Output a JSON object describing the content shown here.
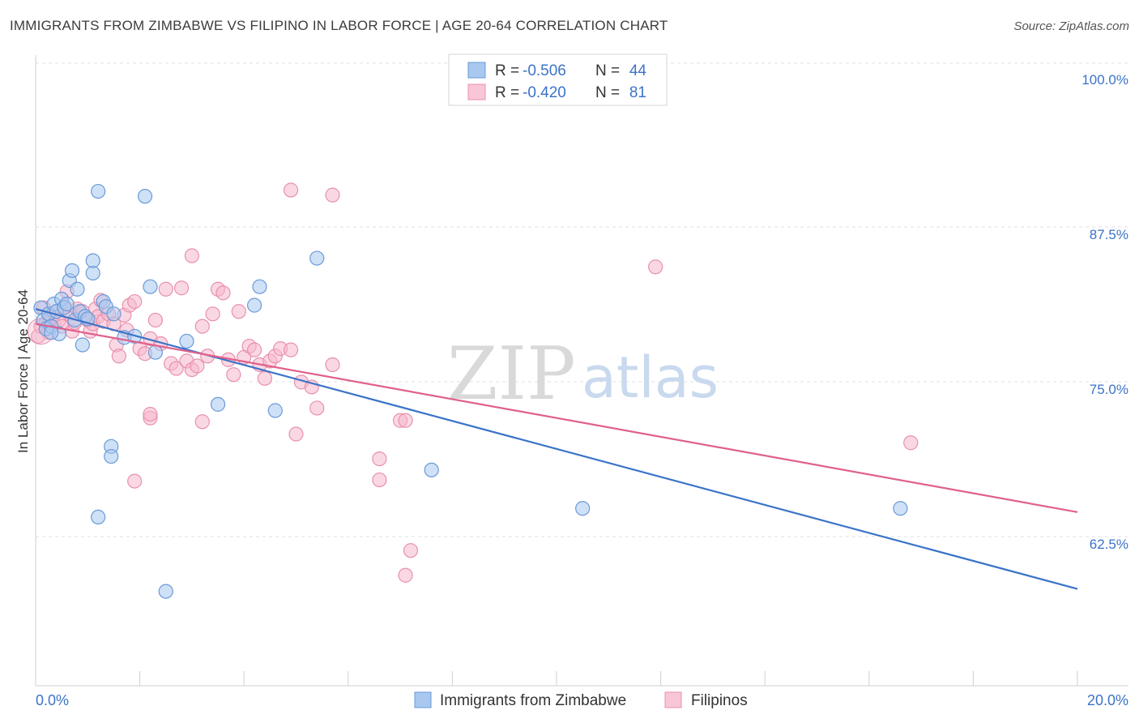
{
  "title": "IMMIGRANTS FROM ZIMBABWE VS FILIPINO IN LABOR FORCE | AGE 20-64 CORRELATION CHART",
  "source": "Source: ZipAtlas.com",
  "watermark": {
    "zip": "ZIP",
    "atlas": "atlas"
  },
  "colors": {
    "blue": "#3b73c8",
    "blue_fill": "#a8c8f0",
    "pink": "#e0608c",
    "pink_fill": "#f5b8cc"
  },
  "legend": {
    "rows": [
      {
        "r_label": "R =",
        "r_value": "-0.506",
        "n_label": "N =",
        "n_value": "44"
      },
      {
        "r_label": "R =",
        "r_value": "-0.420",
        "n_label": "N =",
        "n_value": "81"
      }
    ]
  },
  "chart_data": {
    "type": "scatter",
    "xlabel": "",
    "ylabel": "In Labor Force | Age 20-64",
    "xlim": [
      0,
      20
    ],
    "ylim": [
      50,
      100
    ],
    "x_tick_labels": [
      "0.0%",
      "20.0%"
    ],
    "y_tick_labels": [
      "100.0%",
      "87.5%",
      "75.0%",
      "62.5%"
    ],
    "y_ticks": [
      100,
      87.5,
      75,
      62.5
    ],
    "grid": true,
    "series": [
      {
        "name": "Immigrants from Zimbabwe",
        "r": -0.506,
        "n": 44,
        "trend": {
          "x": [
            0,
            20
          ],
          "y": [
            81.4,
            58.8
          ]
        },
        "points": [
          [
            0.1,
            81.5
          ],
          [
            0.15,
            80.5
          ],
          [
            0.2,
            79.8
          ],
          [
            0.25,
            81
          ],
          [
            0.3,
            80
          ],
          [
            0.35,
            81.8
          ],
          [
            0.4,
            81.2
          ],
          [
            0.45,
            79.4
          ],
          [
            0.5,
            82.2
          ],
          [
            0.55,
            81.5
          ],
          [
            0.6,
            81.8
          ],
          [
            0.65,
            83.7
          ],
          [
            0.7,
            84.5
          ],
          [
            0.75,
            80.5
          ],
          [
            0.8,
            83
          ],
          [
            0.85,
            81.2
          ],
          [
            0.9,
            78.5
          ],
          [
            0.95,
            80.8
          ],
          [
            1.0,
            80.6
          ],
          [
            1.1,
            84.3
          ],
          [
            1.1,
            85.3
          ],
          [
            1.2,
            90.9
          ],
          [
            1.3,
            82
          ],
          [
            1.35,
            81.6
          ],
          [
            1.5,
            81
          ],
          [
            1.7,
            79.1
          ],
          [
            1.9,
            79.2
          ],
          [
            2.1,
            90.5
          ],
          [
            2.2,
            83.2
          ],
          [
            2.3,
            77.9
          ],
          [
            2.9,
            78.8
          ],
          [
            3.5,
            73.7
          ],
          [
            4.2,
            81.7
          ],
          [
            4.3,
            83.2
          ],
          [
            4.6,
            73.2
          ],
          [
            5.4,
            85.5
          ],
          [
            1.45,
            70.3
          ],
          [
            1.45,
            69.5
          ],
          [
            1.2,
            64.6
          ],
          [
            2.5,
            58.6
          ],
          [
            7.6,
            68.4
          ],
          [
            10.5,
            65.3
          ],
          [
            16.6,
            65.3
          ],
          [
            0.3,
            79.5
          ]
        ]
      },
      {
        "name": "Filipinos",
        "r": -0.42,
        "n": 81,
        "trend": {
          "x": [
            0,
            20
          ],
          "y": [
            80.2,
            65
          ]
        },
        "points": [
          [
            0.05,
            79.2
          ],
          [
            0.1,
            80
          ],
          [
            0.15,
            81.5
          ],
          [
            0.2,
            80.3
          ],
          [
            0.25,
            79.5
          ],
          [
            0.3,
            80.8
          ],
          [
            0.35,
            80.2
          ],
          [
            0.4,
            81.2
          ],
          [
            0.45,
            80.5
          ],
          [
            0.5,
            80
          ],
          [
            0.55,
            81.6
          ],
          [
            0.6,
            82.8
          ],
          [
            0.65,
            81
          ],
          [
            0.7,
            79.6
          ],
          [
            0.75,
            80.3
          ],
          [
            0.8,
            81.4
          ],
          [
            0.9,
            81.2
          ],
          [
            1.0,
            80.5
          ],
          [
            1.05,
            79.6
          ],
          [
            1.1,
            80.2
          ],
          [
            1.15,
            81.4
          ],
          [
            1.2,
            80.8
          ],
          [
            1.25,
            82.1
          ],
          [
            1.3,
            80.4
          ],
          [
            1.4,
            81
          ],
          [
            1.5,
            80.2
          ],
          [
            1.55,
            78.5
          ],
          [
            1.6,
            77.6
          ],
          [
            1.7,
            80.9
          ],
          [
            1.75,
            79.7
          ],
          [
            1.8,
            81.7
          ],
          [
            1.9,
            82
          ],
          [
            2.0,
            78.2
          ],
          [
            2.1,
            77.8
          ],
          [
            2.2,
            79
          ],
          [
            2.3,
            80.5
          ],
          [
            2.4,
            78.6
          ],
          [
            2.5,
            83
          ],
          [
            2.6,
            77
          ],
          [
            2.7,
            76.6
          ],
          [
            2.8,
            83.1
          ],
          [
            2.9,
            77.2
          ],
          [
            3.0,
            76.5
          ],
          [
            3.1,
            76.8
          ],
          [
            3.2,
            80
          ],
          [
            3.3,
            77.6
          ],
          [
            3.4,
            81
          ],
          [
            3.5,
            83
          ],
          [
            3.6,
            82.7
          ],
          [
            3.7,
            77.3
          ],
          [
            3.8,
            76.1
          ],
          [
            3.9,
            81.2
          ],
          [
            4.0,
            77.5
          ],
          [
            4.1,
            78.4
          ],
          [
            4.2,
            78.1
          ],
          [
            4.3,
            76.9
          ],
          [
            4.4,
            75.8
          ],
          [
            4.5,
            77.2
          ],
          [
            4.6,
            77.6
          ],
          [
            4.7,
            78.2
          ],
          [
            4.9,
            78.1
          ],
          [
            5.1,
            75.5
          ],
          [
            5.3,
            75.1
          ],
          [
            5.4,
            73.4
          ],
          [
            5.7,
            76.9
          ],
          [
            4.9,
            91
          ],
          [
            5.7,
            90.6
          ],
          [
            3.0,
            85.7
          ],
          [
            2.2,
            72.6
          ],
          [
            2.2,
            72.9
          ],
          [
            3.2,
            72.3
          ],
          [
            5.0,
            71.3
          ],
          [
            7.0,
            72.4
          ],
          [
            7.1,
            72.4
          ],
          [
            6.6,
            69.3
          ],
          [
            6.6,
            67.6
          ],
          [
            7.2,
            61.9
          ],
          [
            7.1,
            59.9
          ],
          [
            11.9,
            84.8
          ],
          [
            16.8,
            70.6
          ],
          [
            1.9,
            67.5
          ]
        ]
      }
    ]
  },
  "bottom_legend": [
    "Immigrants from Zimbabwe",
    "Filipinos"
  ]
}
